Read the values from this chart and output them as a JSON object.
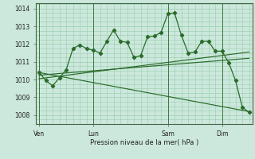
{
  "background_color": "#cce8dd",
  "grid_color": "#99ccaa",
  "line_color": "#2a6b2a",
  "marker_color": "#2a6b2a",
  "xlabel": "Pression niveau de la mer( hPa )",
  "ylim": [
    1007.5,
    1014.3
  ],
  "yticks": [
    1008,
    1009,
    1010,
    1011,
    1012,
    1013,
    1014
  ],
  "xtick_labels": [
    "Ven",
    "Lun",
    "Sam",
    "Dim"
  ],
  "xtick_positions": [
    0,
    8,
    19,
    27
  ],
  "line1_x": [
    0,
    1,
    2,
    3,
    4,
    5,
    6,
    7,
    8,
    9,
    10,
    11,
    12,
    13,
    14,
    15,
    16,
    17,
    18,
    19,
    20,
    21,
    22,
    23,
    24,
    25,
    26,
    27,
    28,
    29,
    30,
    31
  ],
  "line1_y": [
    1010.4,
    1009.95,
    1009.65,
    1010.1,
    1010.55,
    1011.75,
    1011.95,
    1011.75,
    1011.65,
    1011.5,
    1012.15,
    1012.8,
    1012.15,
    1012.1,
    1011.25,
    1011.35,
    1012.4,
    1012.45,
    1012.65,
    1013.7,
    1013.75,
    1012.5,
    1011.5,
    1011.55,
    1012.15,
    1012.15,
    1011.6,
    1011.6,
    1010.95,
    1009.95,
    1008.45,
    1008.15
  ],
  "line2_x": [
    0,
    31
  ],
  "line2_y": [
    1010.05,
    1011.55
  ],
  "line3_x": [
    0,
    31
  ],
  "line3_y": [
    1010.25,
    1011.2
  ],
  "line4_x": [
    0,
    31
  ],
  "line4_y": [
    1010.4,
    1008.2
  ],
  "vline_positions": [
    0,
    8,
    19,
    27
  ],
  "xlim": [
    -0.5,
    31.5
  ]
}
